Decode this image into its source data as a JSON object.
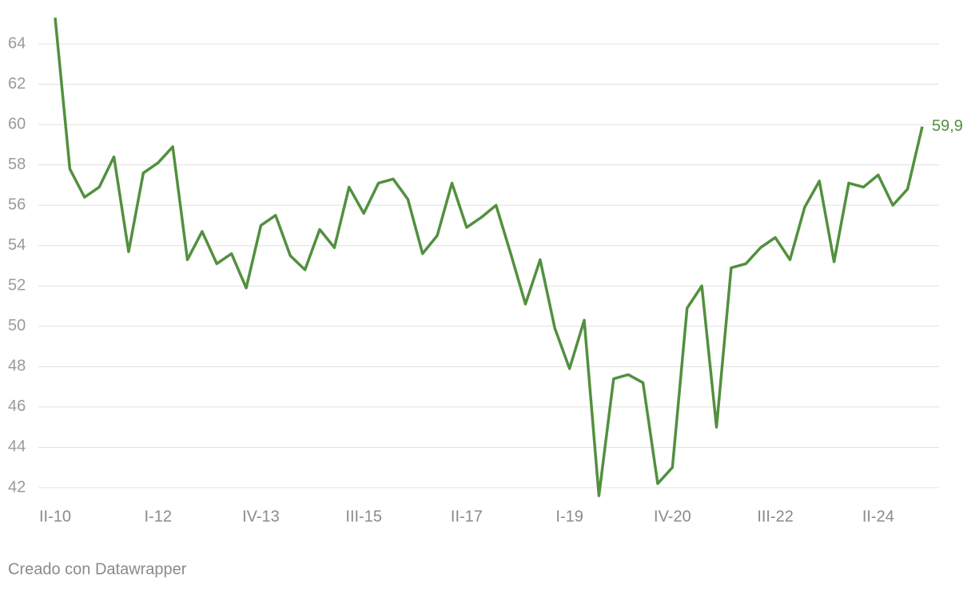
{
  "chart_data": {
    "type": "line",
    "categories": [
      "II-10",
      null,
      null,
      null,
      null,
      null,
      null,
      "I-12",
      null,
      null,
      null,
      null,
      null,
      null,
      "IV-13",
      null,
      null,
      null,
      null,
      null,
      null,
      "III-15",
      null,
      null,
      null,
      null,
      null,
      null,
      "II-17",
      null,
      null,
      null,
      null,
      null,
      null,
      "I-19",
      null,
      null,
      null,
      null,
      null,
      null,
      "IV-20",
      null,
      null,
      null,
      null,
      null,
      null,
      "III-22",
      null,
      null,
      null,
      null,
      null,
      null,
      "II-24",
      null,
      null,
      null
    ],
    "series": [
      {
        "name": null,
        "color": "#52903f",
        "values": [
          65.3,
          57.8,
          56.4,
          56.9,
          58.4,
          53.7,
          57.6,
          58.1,
          58.9,
          53.3,
          54.7,
          53.1,
          53.6,
          51.9,
          55.0,
          55.5,
          53.5,
          52.8,
          54.8,
          53.9,
          56.9,
          55.6,
          57.1,
          57.3,
          56.3,
          53.6,
          54.5,
          57.1,
          54.9,
          55.4,
          56.0,
          53.6,
          51.1,
          53.3,
          49.9,
          47.9,
          50.3,
          41.6,
          47.4,
          47.6,
          47.2,
          42.2,
          43.0,
          50.9,
          52.0,
          45.0,
          52.9,
          53.1,
          53.9,
          54.4,
          53.3,
          55.9,
          57.2,
          53.2,
          57.1,
          56.9,
          57.5,
          56.0,
          56.8,
          59.9
        ],
        "value_labels": [
          null,
          null,
          null,
          null,
          null,
          null,
          null,
          null,
          null,
          null,
          null,
          null,
          null,
          null,
          null,
          null,
          null,
          null,
          null,
          null,
          null,
          null,
          null,
          null,
          null,
          null,
          null,
          null,
          null,
          null,
          null,
          null,
          null,
          null,
          null,
          null,
          null,
          null,
          null,
          null,
          null,
          null,
          null,
          null,
          null,
          null,
          null,
          null,
          null,
          null,
          null,
          null,
          null,
          null,
          null,
          null,
          null,
          null,
          null,
          "59,9"
        ]
      }
    ],
    "ylim": [
      41.2,
      65.5
    ],
    "yticks": [
      42,
      44,
      46,
      48,
      50,
      52,
      54,
      56,
      58,
      60,
      62,
      64
    ],
    "grid": true,
    "credit": "Creado con Datawrapper"
  }
}
